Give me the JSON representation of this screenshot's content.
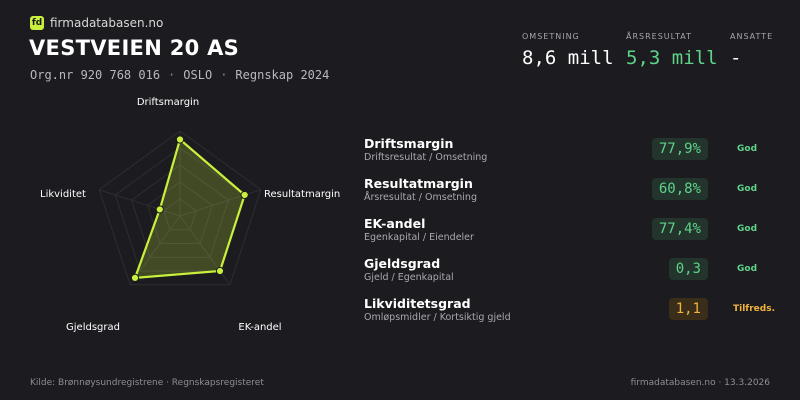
{
  "brand": {
    "logo": "fd",
    "name": "firmadatabasen.no"
  },
  "company": {
    "name": "VESTVEIEN 20 AS",
    "orgnr": "Org.nr 920 768 016",
    "city": "OSLO",
    "period": "Regnskap 2024",
    "sep": "·"
  },
  "stats": [
    {
      "label": "OMSETNING",
      "value": "8,6 mill",
      "color": "#ffffff"
    },
    {
      "label": "ÅRSRESULTAT",
      "value": "5,3 mill",
      "color": "#5fd38a"
    },
    {
      "label": "ANSATTE",
      "value": "-",
      "color": "#ffffff"
    }
  ],
  "radar": {
    "labels": [
      "Driftsmargin",
      "Resultatmargin",
      "EK-andel",
      "Gjeldsgrad",
      "Likviditet"
    ],
    "values": [
      0.9,
      0.8,
      0.8,
      0.9,
      0.25
    ],
    "color": "#c8f03c"
  },
  "metrics": [
    {
      "name": "Driftsmargin",
      "desc": "Driftsresultat / Omsetning",
      "value": "77,9%",
      "status": "God",
      "level": "good"
    },
    {
      "name": "Resultatmargin",
      "desc": "Årsresultat / Omsetning",
      "value": "60,8%",
      "status": "God",
      "level": "good"
    },
    {
      "name": "EK-andel",
      "desc": "Egenkapital / Eiendeler",
      "value": "77,4%",
      "status": "God",
      "level": "good"
    },
    {
      "name": "Gjeldsgrad",
      "desc": "Gjeld / Egenkapital",
      "value": "0,3",
      "status": "God",
      "level": "good"
    },
    {
      "name": "Likviditetsgrad",
      "desc": "Omløpsmidler / Kortsiktig gjeld",
      "value": "1,1",
      "status": "Tilfreds.",
      "level": "ok"
    }
  ],
  "footer": {
    "source": "Kilde: Brønnøysundregistrene · Regnskapsregisteret",
    "site_date": "firmadatabasen.no · 13.3.2026"
  }
}
